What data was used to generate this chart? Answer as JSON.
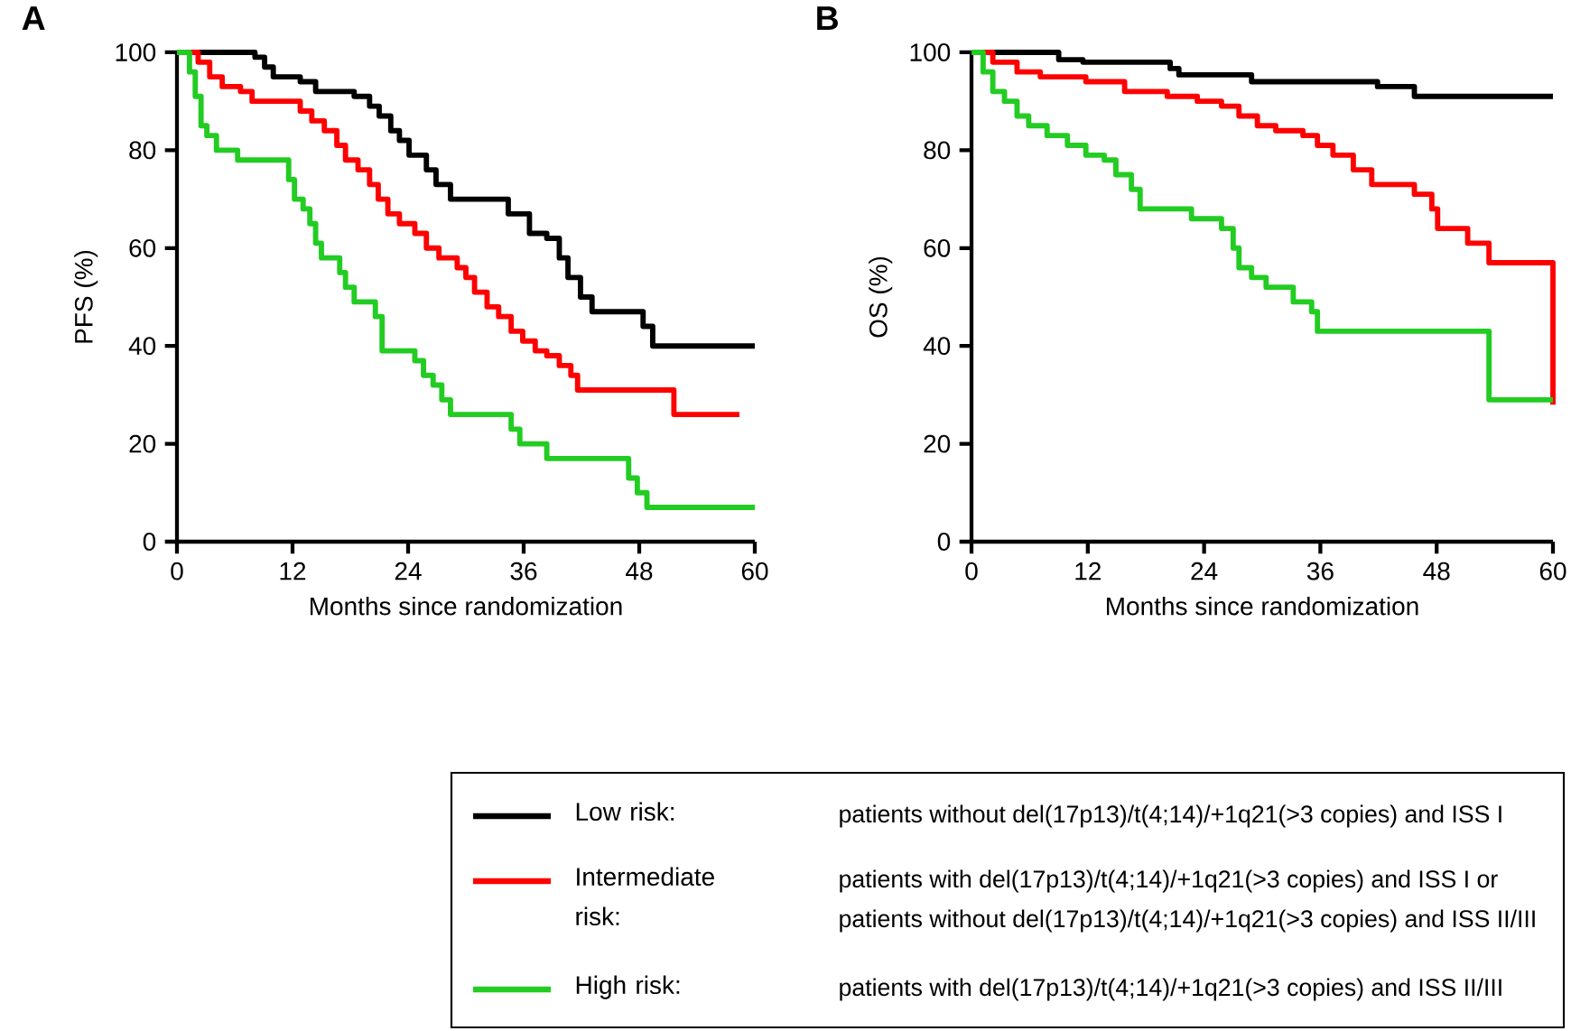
{
  "chart_data": [
    {
      "type": "step",
      "title": "A",
      "xlabel": "Months since randomization",
      "ylabel": "PFS (%)",
      "xlim": [
        0,
        60
      ],
      "xticks": [
        0,
        12,
        24,
        36,
        48,
        60
      ],
      "ylim": [
        0,
        100
      ],
      "yticks": [
        0,
        20,
        40,
        60,
        80,
        100
      ],
      "legend": "bottom",
      "line_style": "solid",
      "series": [
        {
          "name": "Low risk:",
          "color": "#000000",
          "x": [
            0,
            8.1,
            9.1,
            10,
            12.8,
            14.4,
            18.4,
            20,
            21,
            22.2,
            23.1,
            24.1,
            25.9,
            26.9,
            28.4,
            34.4,
            36.6,
            38.4,
            39.7,
            40.6,
            41.9,
            43.1,
            48.4,
            49.4,
            60
          ],
          "values": [
            100,
            99,
            97,
            95,
            94,
            92,
            91,
            89,
            87,
            84,
            82,
            79,
            76,
            73,
            70,
            67,
            63,
            62,
            58,
            54,
            50,
            47,
            44,
            40,
            40
          ]
        },
        {
          "name": "Intermediate risk:",
          "color": "#ff0000",
          "x": [
            0,
            2.2,
            3.4,
            4.7,
            6.6,
            7.8,
            12.8,
            14,
            15.3,
            16.6,
            17.5,
            18.8,
            20,
            20.9,
            21.9,
            23.1,
            24.7,
            25.9,
            27.2,
            29.1,
            30,
            30.9,
            32.2,
            33.4,
            34.7,
            35.9,
            37.2,
            38.4,
            39.7,
            40.9,
            41.6,
            51.6,
            58.4
          ],
          "values": [
            100,
            98,
            95,
            93,
            92,
            90,
            88,
            86,
            84,
            81,
            78,
            76,
            73,
            70,
            67,
            65,
            63,
            60,
            58,
            56,
            54,
            51,
            48,
            46,
            43,
            41,
            39,
            38,
            36,
            34,
            31,
            26,
            26
          ]
        },
        {
          "name": "High risk:",
          "color": "#22cc22",
          "x": [
            0,
            1.3,
            1.9,
            2.5,
            3.1,
            4.1,
            6.3,
            11.6,
            12.2,
            13.1,
            13.8,
            14.4,
            15,
            16.9,
            17.5,
            18.4,
            20.6,
            21.3,
            24.7,
            25.6,
            26.6,
            27.5,
            28.4,
            34.7,
            35.6,
            38.4,
            46.9,
            47.8,
            48.8,
            60
          ],
          "values": [
            100,
            96,
            91,
            85,
            83,
            80,
            78,
            74,
            70,
            68,
            65,
            61,
            58,
            55,
            52,
            49,
            46,
            39,
            37,
            34,
            32,
            29,
            26,
            23,
            20,
            17,
            13,
            10,
            7,
            7
          ]
        }
      ],
      "annotations": [
        "patients without del(17p13)/t(4;14)/+1q21(>3 copies) and ISS I",
        "patients with del(17p13)/t(4;14)/+1q21(>3 copies) and ISS I or",
        "patients without del(17p13)/t(4;14)/+1q21(>3 copies) and ISS II/III",
        "patients with del(17p13)/t(4;14)/+1q21(>3 copies) and ISS II/III"
      ]
    },
    {
      "type": "step",
      "title": "B",
      "xlabel": "Months since randomization",
      "ylabel": "OS (%)",
      "xlim": [
        0,
        60
      ],
      "xticks": [
        0,
        12,
        24,
        36,
        48,
        60
      ],
      "ylim": [
        0,
        100
      ],
      "yticks": [
        0,
        20,
        40,
        60,
        80,
        100
      ],
      "line_style": "solid",
      "series": [
        {
          "color": "#000000",
          "x": [
            0,
            9,
            11.5,
            20.5,
            21.4,
            28.9,
            41.9,
            45.7,
            60
          ],
          "values": [
            100,
            98.5,
            98,
            96.7,
            95.4,
            94,
            93,
            91,
            91
          ]
        },
        {
          "color": "#ff0000",
          "x": [
            0,
            2.2,
            4.7,
            7.1,
            11.8,
            15.8,
            20.2,
            23.3,
            25.8,
            27.6,
            29.5,
            31.4,
            34.2,
            35.7,
            37.3,
            39.4,
            41.3,
            45.7,
            47.5,
            48.1,
            51.2,
            53.4,
            60
          ],
          "values": [
            100,
            98,
            96,
            95,
            94,
            92,
            91,
            90,
            89,
            87,
            85,
            84,
            83,
            81,
            79,
            76,
            73,
            71,
            68,
            64,
            61,
            57,
            28
          ]
        },
        {
          "color": "#22cc22",
          "x": [
            0,
            1.2,
            2.2,
            3.4,
            4.7,
            5.9,
            7.8,
            9.9,
            11.8,
            13.7,
            14.9,
            16.5,
            17.4,
            22.7,
            25.8,
            27,
            27.6,
            28.9,
            30.4,
            33.2,
            35.1,
            35.7,
            53.4,
            60
          ],
          "values": [
            100,
            96,
            92,
            90,
            87,
            85,
            83,
            81,
            79,
            78,
            75,
            72,
            68,
            66,
            64,
            60,
            56,
            54,
            52,
            49,
            47,
            43,
            29,
            29
          ]
        }
      ]
    }
  ]
}
